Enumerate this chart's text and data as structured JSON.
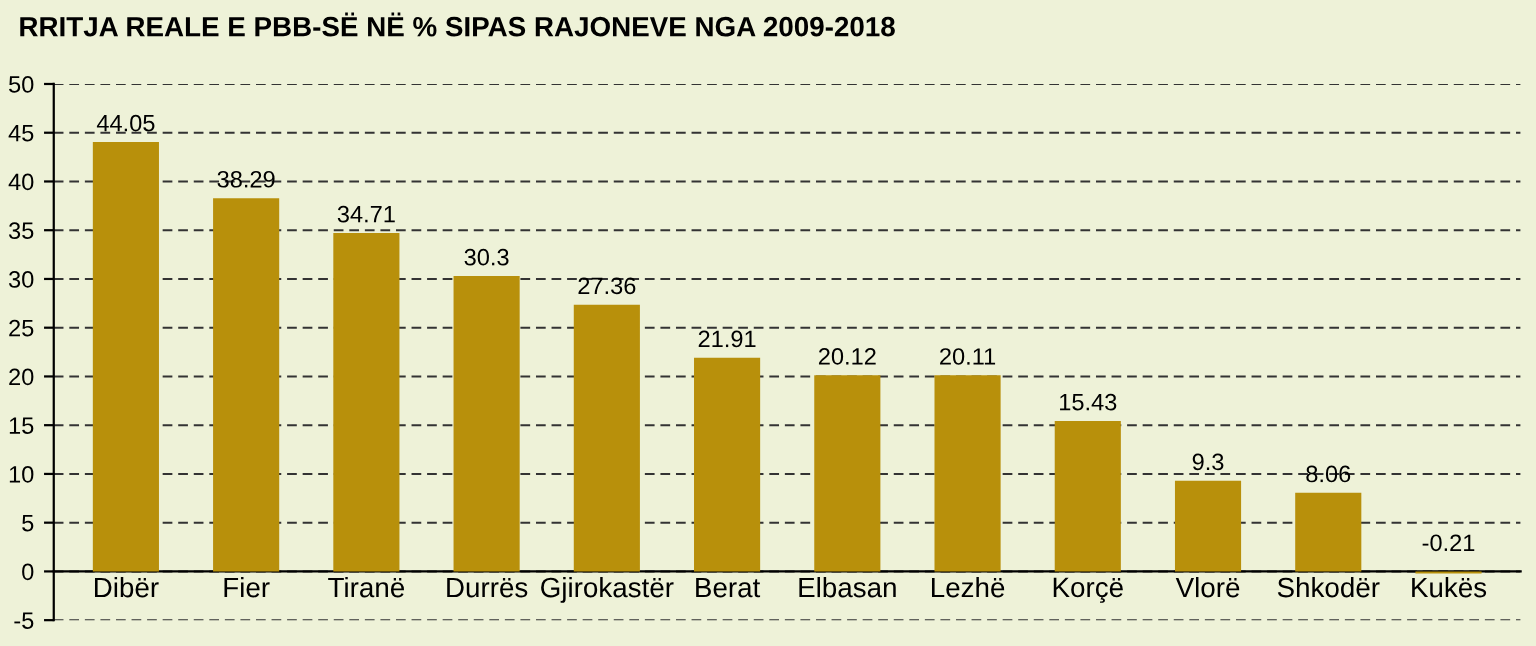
{
  "chart_data": {
    "type": "bar",
    "title": "RRITJA REALE E PBB-SË NË % SIPAS RAJONEVE NGA 2009-2018",
    "categories": [
      "Dibër",
      "Fier",
      "Tiranë",
      "Durrës",
      "Gjirokastër",
      "Berat",
      "Elbasan",
      "Lezhë",
      "Korçë",
      "Vlorë",
      "Shkodër",
      "Kukës"
    ],
    "values": [
      44.05,
      38.29,
      34.71,
      30.3,
      27.36,
      21.91,
      20.12,
      20.11,
      15.43,
      9.3,
      8.06,
      -0.21
    ],
    "color": "#b8900b",
    "ylim": [
      -5,
      50
    ],
    "yticks": [
      -5,
      0,
      5,
      10,
      15,
      20,
      25,
      30,
      35,
      40,
      45,
      50
    ],
    "grid": "y",
    "data_labels": true
  }
}
